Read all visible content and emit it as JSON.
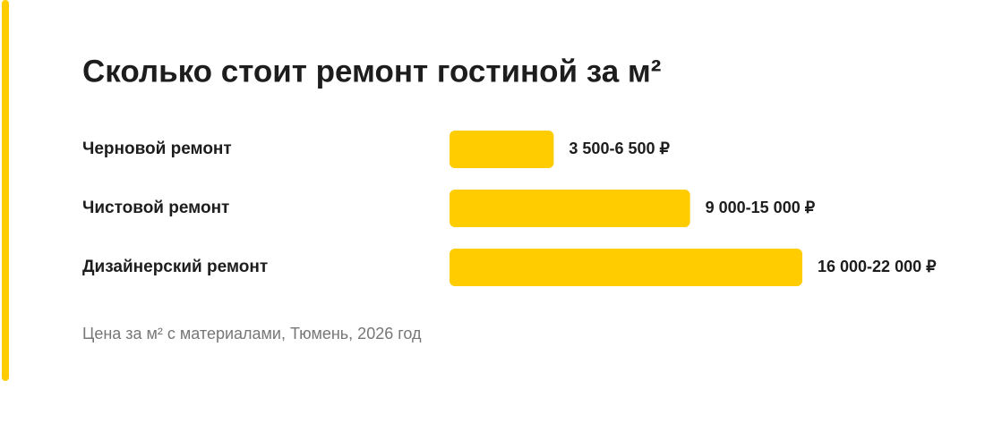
{
  "chart_data": {
    "type": "bar",
    "orientation": "horizontal",
    "title": "Сколько стоит ремонт гостиной за м²",
    "categories": [
      "Черновой ремонт",
      "Чистовой ремонт",
      "Дизайнерский ремонт"
    ],
    "values": [
      6500,
      15000,
      22000
    ],
    "value_labels": [
      "3 500-6 500 ₽",
      "9 000-15 000 ₽",
      "16 000-22 000 ₽"
    ],
    "color": "#ffcc00",
    "footnote": "Цена за м² с материалами, Тюмень, 2026 год"
  }
}
